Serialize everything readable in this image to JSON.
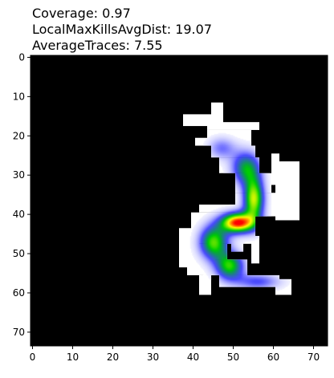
{
  "title_lines": [
    "Coverage: 0.97",
    "LocalMaxKillsAvgDist: 19.07",
    "AverageTraces: 7.55"
  ],
  "chart_data": {
    "type": "heatmap",
    "grid_size": [
      74,
      74
    ],
    "xlim": [
      -0.5,
      73.5
    ],
    "ylim": [
      73.5,
      -0.5
    ],
    "xticks": [
      0,
      10,
      20,
      30,
      40,
      50,
      60,
      70
    ],
    "yticks": [
      0,
      10,
      20,
      30,
      40,
      50,
      60,
      70
    ],
    "background_color": "#000000",
    "coverage_color": "#ffffff",
    "colormap": [
      "#ffffff",
      "#0000ff",
      "#00d000",
      "#ffff00",
      "#ff0000"
    ],
    "coverage_rects": [
      {
        "x0": 45,
        "y0": 12,
        "x1": 48,
        "y1": 18
      },
      {
        "x0": 38,
        "y0": 15,
        "x1": 46,
        "y1": 18
      },
      {
        "x0": 44,
        "y0": 17,
        "x1": 57,
        "y1": 19
      },
      {
        "x0": 44,
        "y0": 19,
        "x1": 55,
        "y1": 23
      },
      {
        "x0": 41,
        "y0": 21,
        "x1": 46,
        "y1": 23
      },
      {
        "x0": 45,
        "y0": 23,
        "x1": 56,
        "y1": 26
      },
      {
        "x0": 47,
        "y0": 26,
        "x1": 57,
        "y1": 30
      },
      {
        "x0": 60,
        "y0": 25,
        "x1": 62,
        "y1": 33
      },
      {
        "x0": 51,
        "y0": 30,
        "x1": 60,
        "y1": 35
      },
      {
        "x0": 56,
        "y0": 35,
        "x1": 62,
        "y1": 37
      },
      {
        "x0": 61,
        "y0": 27,
        "x1": 67,
        "y1": 42
      },
      {
        "x0": 51,
        "y0": 35,
        "x1": 59,
        "y1": 41
      },
      {
        "x0": 58,
        "y0": 37,
        "x1": 62,
        "y1": 41
      },
      {
        "x0": 42,
        "y0": 38,
        "x1": 58,
        "y1": 40
      },
      {
        "x0": 40,
        "y0": 40,
        "x1": 56,
        "y1": 48
      },
      {
        "x0": 37,
        "y0": 44,
        "x1": 42,
        "y1": 54
      },
      {
        "x0": 41,
        "y0": 48,
        "x1": 49,
        "y1": 52
      },
      {
        "x0": 43,
        "y0": 52,
        "x1": 54,
        "y1": 56
      },
      {
        "x0": 50,
        "y0": 46,
        "x1": 53,
        "y1": 50
      },
      {
        "x0": 55,
        "y0": 46,
        "x1": 57,
        "y1": 53
      },
      {
        "x0": 39,
        "y0": 51,
        "x1": 46,
        "y1": 56
      },
      {
        "x0": 42,
        "y0": 56,
        "x1": 45,
        "y1": 61
      },
      {
        "x0": 47,
        "y0": 56,
        "x1": 62,
        "y1": 59
      },
      {
        "x0": 61,
        "y0": 57,
        "x1": 65,
        "y1": 61
      }
    ],
    "density_centers": [
      {
        "x": 51,
        "y": 42,
        "sx": 3.0,
        "sy": 1.8,
        "w": 1.0
      },
      {
        "x": 55,
        "y": 36,
        "sx": 1.8,
        "sy": 4.0,
        "w": 0.75
      },
      {
        "x": 53,
        "y": 28,
        "sx": 2.5,
        "sy": 3.0,
        "w": 0.5
      },
      {
        "x": 47,
        "y": 23,
        "sx": 2.5,
        "sy": 2.0,
        "w": 0.25
      },
      {
        "x": 45,
        "y": 47,
        "sx": 2.5,
        "sy": 3.0,
        "w": 0.65
      },
      {
        "x": 49,
        "y": 53,
        "sx": 2.5,
        "sy": 2.5,
        "w": 0.6
      },
      {
        "x": 56,
        "y": 57,
        "sx": 4.0,
        "sy": 1.5,
        "w": 0.3
      }
    ]
  }
}
